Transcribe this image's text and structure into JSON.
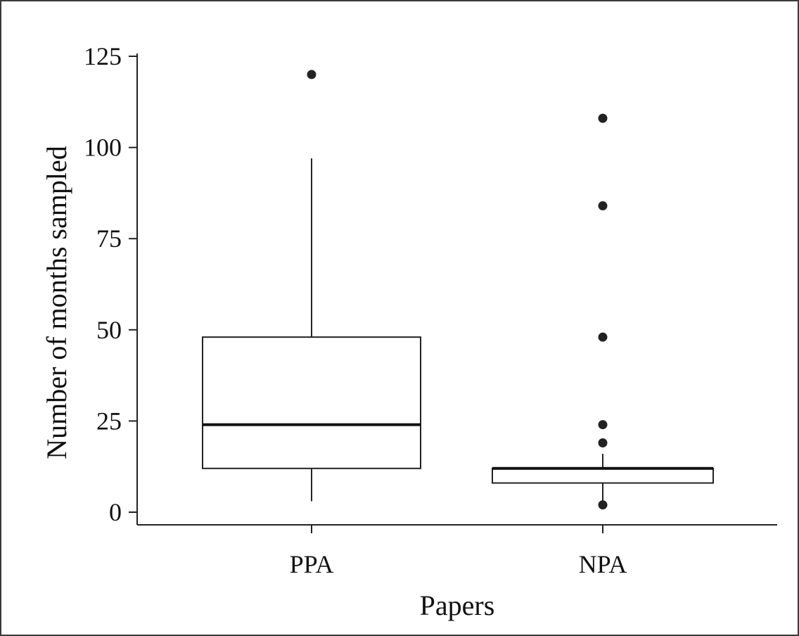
{
  "chart_data": {
    "type": "boxplot",
    "title": "",
    "xlabel": "Papers",
    "ylabel": "Number of months sampled",
    "ylim": [
      0,
      125
    ],
    "yticks": [
      0,
      25,
      50,
      75,
      100,
      125
    ],
    "grid": false,
    "legend": "none",
    "categories": [
      "PPA",
      "NPA"
    ],
    "boxes": [
      {
        "category": "PPA",
        "whisker_low": 3,
        "q1": 12,
        "median": 24,
        "q3": 48,
        "whisker_high": 97,
        "outliers": [
          120
        ]
      },
      {
        "category": "NPA",
        "whisker_low": 3,
        "q1": 8,
        "median": 12,
        "q3": 12,
        "whisker_high": 16,
        "outliers": [
          2,
          19,
          24,
          48,
          84,
          108
        ]
      }
    ],
    "colors": {
      "box_fill": "#ffffff",
      "stroke": "#222222",
      "outlier": "#222222"
    }
  }
}
